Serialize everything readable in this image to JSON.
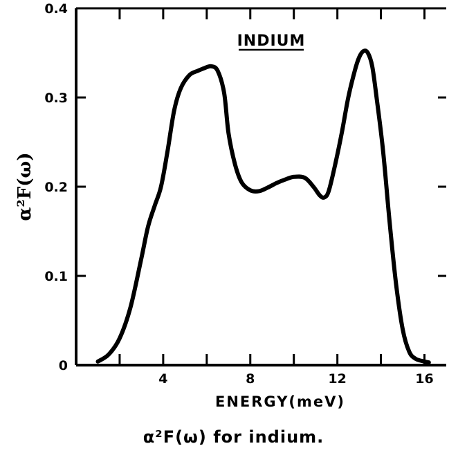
{
  "chart_data": {
    "type": "line",
    "title": "INDIUM",
    "xlabel": "ENERGY(meV)",
    "ylabel": "α²F(ω)",
    "xlim": [
      0,
      17
    ],
    "ylim": [
      0,
      0.4
    ],
    "x_ticks": [
      4,
      8,
      12,
      16
    ],
    "x_tick_labels": [
      "4",
      "8",
      "12",
      "16"
    ],
    "y_ticks": [
      0,
      0.1,
      0.2,
      0.3,
      0.4
    ],
    "y_tick_labels": [
      "0",
      "0.1",
      "0.2",
      "0.3",
      "0.4"
    ],
    "grid": false,
    "series": [
      {
        "x": [
          1.0,
          1.5,
          2.0,
          2.5,
          3.0,
          3.3,
          3.6,
          3.9,
          4.2,
          4.5,
          4.8,
          5.2,
          5.6,
          5.9,
          6.2,
          6.5,
          6.8,
          7.0,
          7.3,
          7.6,
          8.0,
          8.4,
          8.8,
          9.2,
          9.6,
          10.0,
          10.5,
          10.9,
          11.2,
          11.4,
          11.6,
          11.9,
          12.2,
          12.5,
          12.8,
          13.0,
          13.2,
          13.4,
          13.6,
          13.8,
          14.1,
          14.4,
          14.7,
          15.0,
          15.3,
          15.6,
          16.0,
          16.2
        ],
        "y": [
          0.004,
          0.012,
          0.03,
          0.065,
          0.12,
          0.155,
          0.178,
          0.2,
          0.24,
          0.285,
          0.31,
          0.325,
          0.33,
          0.333,
          0.335,
          0.33,
          0.305,
          0.26,
          0.225,
          0.205,
          0.196,
          0.195,
          0.199,
          0.204,
          0.208,
          0.211,
          0.21,
          0.2,
          0.19,
          0.188,
          0.195,
          0.225,
          0.26,
          0.3,
          0.33,
          0.345,
          0.352,
          0.35,
          0.335,
          0.3,
          0.24,
          0.16,
          0.09,
          0.04,
          0.015,
          0.007,
          0.004,
          0.003
        ]
      }
    ]
  },
  "caption": "α²F(ω) for indium."
}
